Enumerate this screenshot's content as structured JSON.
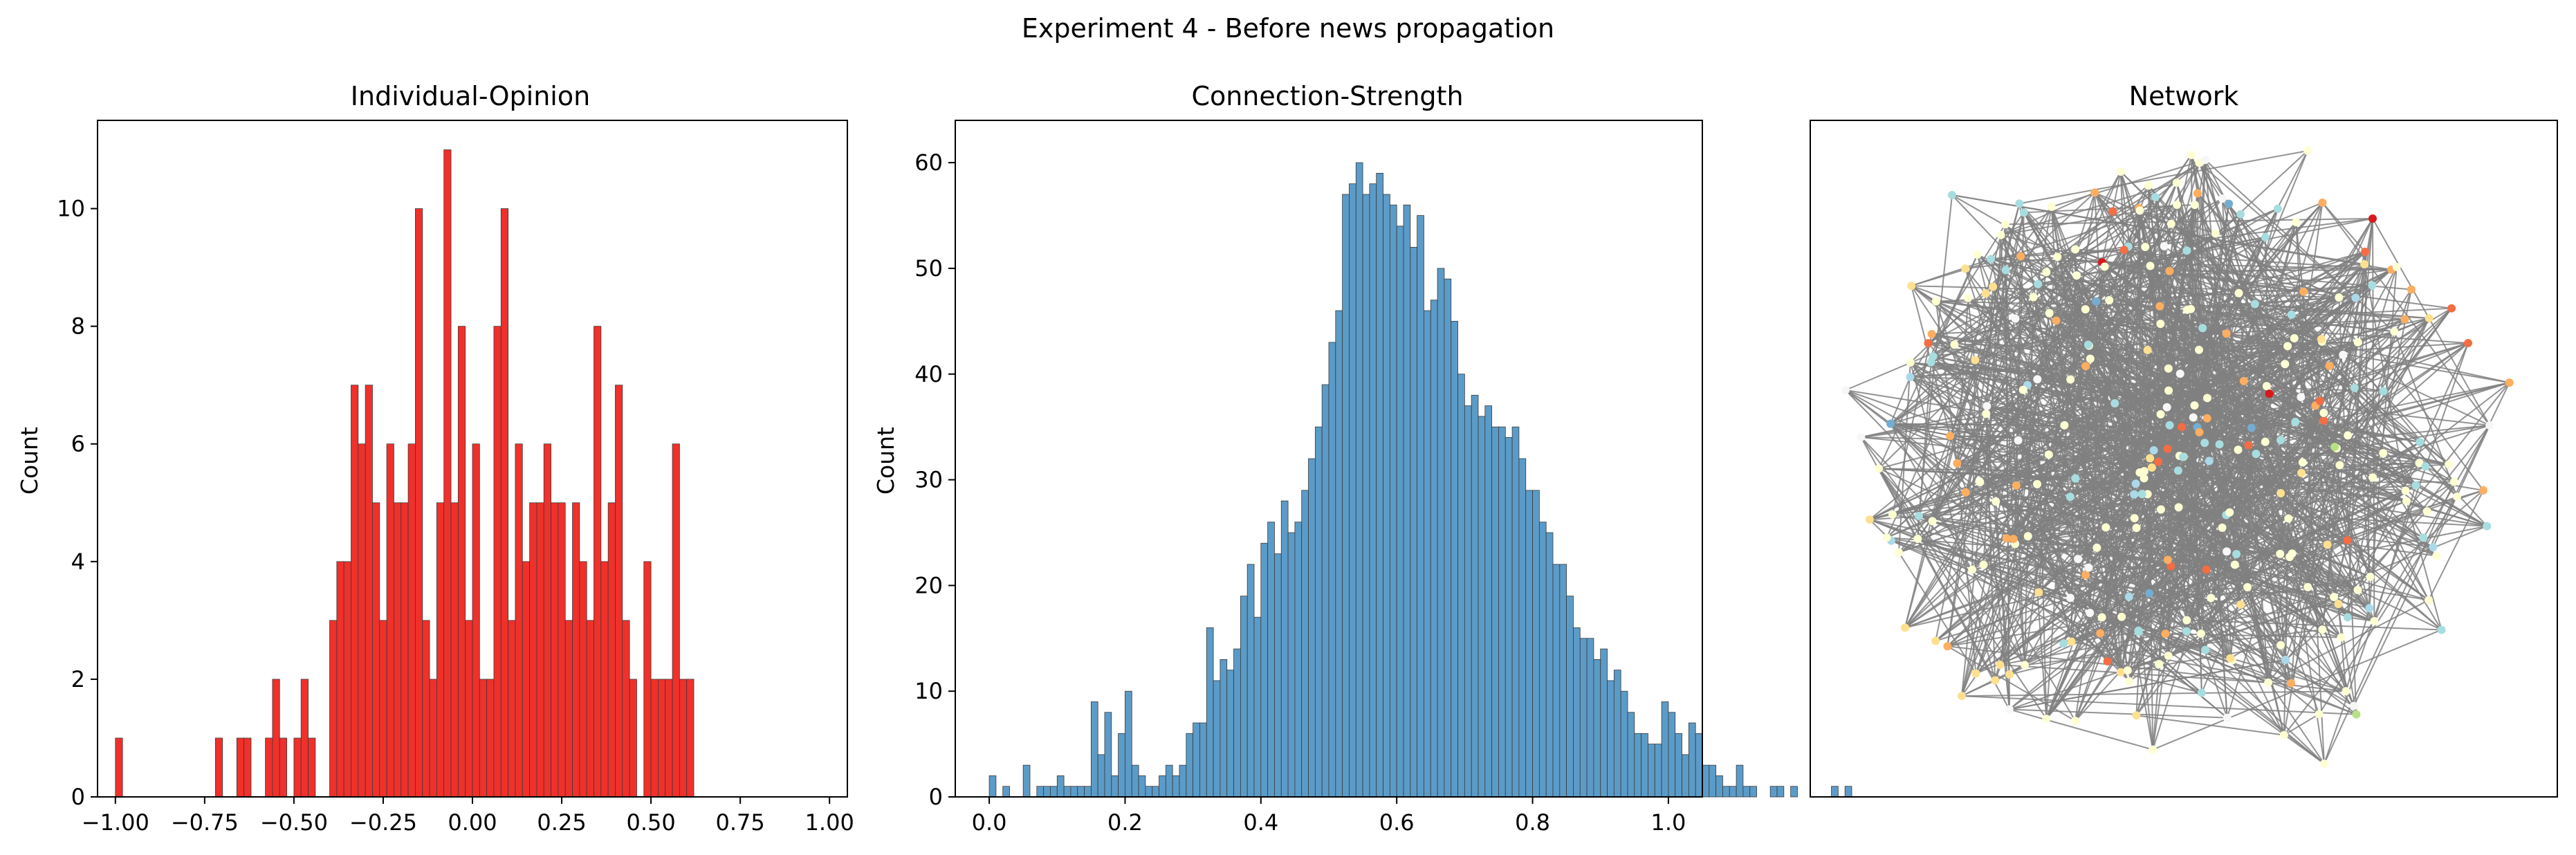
{
  "figure": {
    "suptitle": "Experiment 4 - Before news propagation"
  },
  "chart_data": [
    {
      "type": "bar",
      "subtype": "histogram",
      "title": "Individual-Opinion",
      "xlabel": "",
      "ylabel": "Count",
      "xlim": [
        -1.05,
        1.05
      ],
      "ylim": [
        0,
        11.5
      ],
      "xticks": [
        -1.0,
        -0.75,
        -0.5,
        -0.25,
        0.0,
        0.25,
        0.5,
        0.75,
        1.0
      ],
      "xtick_labels": [
        "−1.00",
        "−0.75",
        "−0.50",
        "−0.25",
        "0.00",
        "0.25",
        "0.50",
        "0.75",
        "1.00"
      ],
      "yticks": [
        0,
        2,
        4,
        6,
        8,
        10
      ],
      "ytick_labels": [
        "0",
        "2",
        "4",
        "6",
        "8",
        "10"
      ],
      "bin_start": -1.0,
      "bin_width": 0.02,
      "values": [
        1,
        0,
        0,
        0,
        0,
        0,
        0,
        0,
        0,
        0,
        0,
        0,
        0,
        0,
        1,
        0,
        0,
        1,
        1,
        0,
        0,
        1,
        2,
        1,
        0,
        1,
        2,
        1,
        0,
        0,
        3,
        4,
        4,
        7,
        6,
        7,
        5,
        3,
        6,
        5,
        5,
        6,
        10,
        3,
        2,
        5,
        11,
        5,
        8,
        3,
        6,
        2,
        2,
        8,
        10,
        3,
        6,
        4,
        5,
        5,
        6,
        5,
        5,
        3,
        5,
        4,
        3,
        8,
        4,
        5,
        7,
        3,
        2,
        0,
        4,
        2,
        2,
        2,
        6,
        2,
        2,
        0,
        0,
        0,
        0,
        0,
        0,
        0,
        0,
        0,
        0,
        0,
        0,
        0,
        0,
        0,
        0,
        0,
        0,
        0
      ],
      "bar_color": "#f0302a",
      "grid": false
    },
    {
      "type": "bar",
      "subtype": "histogram",
      "title": "Connection-Strength",
      "xlabel": "",
      "ylabel": "Count",
      "xlim": [
        -0.05,
        1.05
      ],
      "ylim": [
        0,
        64
      ],
      "xticks": [
        0.0,
        0.2,
        0.4,
        0.6,
        0.8,
        1.0
      ],
      "xtick_labels": [
        "0.0",
        "0.2",
        "0.4",
        "0.6",
        "0.8",
        "1.0"
      ],
      "yticks": [
        0,
        10,
        20,
        30,
        40,
        50,
        60
      ],
      "ytick_labels": [
        "0",
        "10",
        "20",
        "30",
        "40",
        "50",
        "60"
      ],
      "bin_start": 0.0,
      "bin_width": 0.01,
      "values": [
        2,
        0,
        1,
        0,
        0,
        3,
        0,
        1,
        1,
        1,
        2,
        1,
        1,
        1,
        1,
        9,
        4,
        8,
        2,
        6,
        10,
        3,
        2,
        1,
        1,
        2,
        3,
        2,
        3,
        6,
        7,
        7,
        16,
        11,
        13,
        12,
        14,
        19,
        22,
        17,
        24,
        26,
        23,
        28,
        25,
        26,
        29,
        32,
        35,
        39,
        43,
        46,
        57,
        58,
        60,
        57,
        58,
        59,
        57,
        56,
        54,
        56,
        52,
        55,
        46,
        47,
        50,
        49,
        45,
        40,
        37,
        38,
        36,
        37,
        35,
        35,
        34,
        35,
        32,
        29,
        29,
        26,
        25,
        22,
        22,
        19,
        16,
        15,
        15,
        13,
        14,
        11,
        12,
        10,
        8,
        6,
        6,
        5,
        5,
        9,
        8,
        6,
        4,
        7,
        6,
        3,
        3,
        2,
        1,
        1,
        3,
        1,
        1,
        0,
        0,
        1,
        1,
        0,
        1,
        0,
        0,
        0,
        0,
        0,
        1,
        0,
        1
      ]
    },
    {
      "type": "scatter",
      "subtype": "network-graph",
      "title": "Network",
      "edge_color": "#808080",
      "node_palette": [
        "#ffffd4",
        "#a8dde0",
        "#fdae61",
        "#f46d43",
        "#d7191c",
        "#abd9e9",
        "#fee090",
        "#74add1",
        "#f7f7f7",
        "#2c2c8c",
        "#b8e186"
      ],
      "node_count": 300,
      "axes_visible": false
    }
  ]
}
